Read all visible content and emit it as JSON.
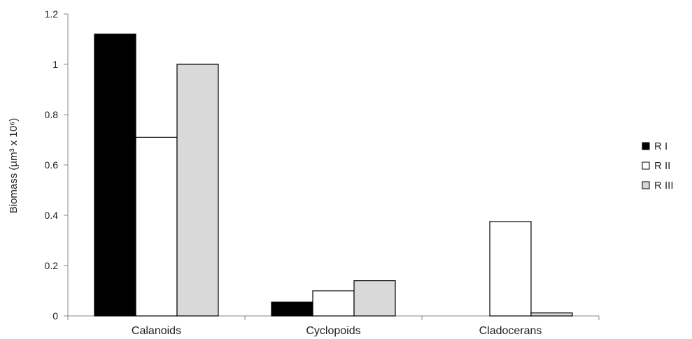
{
  "chart_data": {
    "type": "bar",
    "title": "",
    "xlabel": "",
    "ylabel": "Biomass (µm³ x 10⁶)",
    "ylim": [
      0,
      1.2
    ],
    "yticks": [
      "0",
      "0.2",
      "0.4",
      "0.6",
      "0.8",
      "1",
      "1.2"
    ],
    "ytick_values": [
      0,
      0.2,
      0.4,
      0.6,
      0.8,
      1.0,
      1.2
    ],
    "categories": [
      "Calanoids",
      "Cyclopoids",
      "Cladocerans"
    ],
    "series": [
      {
        "name": "R I",
        "values": [
          1.12,
          0.055,
          0
        ],
        "color": "#000000"
      },
      {
        "name": "R II",
        "values": [
          0.71,
          0.1,
          0.375
        ],
        "color": "#ffffff"
      },
      {
        "name": "R III",
        "values": [
          1.0,
          0.14,
          0.012
        ],
        "color": "#d9d9d9"
      }
    ],
    "grid": false,
    "legend_position": "right"
  }
}
